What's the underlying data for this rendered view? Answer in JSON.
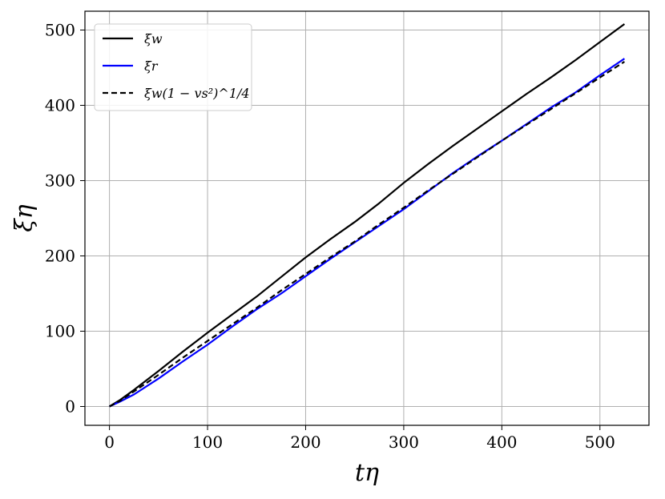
{
  "chart_data": {
    "type": "line",
    "xlabel": "tη",
    "ylabel": "ξη",
    "xlim": [
      -25,
      550
    ],
    "ylim": [
      -25,
      525
    ],
    "xticks": [
      0,
      100,
      200,
      300,
      400,
      500
    ],
    "yticks": [
      0,
      100,
      200,
      300,
      400,
      500
    ],
    "grid": true,
    "legend_position": "top-left",
    "series": [
      {
        "name": "ξw",
        "color": "#000000",
        "style": "solid",
        "x": [
          0,
          10,
          25,
          50,
          75,
          100,
          125,
          150,
          175,
          200,
          225,
          250,
          275,
          300,
          325,
          350,
          375,
          400,
          425,
          450,
          475,
          500,
          525
        ],
        "y": [
          0,
          8,
          22,
          47,
          73,
          98,
          122,
          146,
          172,
          198,
          222,
          245,
          270,
          297,
          322,
          346,
          369,
          392,
          415,
          437,
          460,
          484,
          508
        ]
      },
      {
        "name": "ξr",
        "color": "#0000ff",
        "style": "solid",
        "x": [
          0,
          10,
          25,
          50,
          75,
          100,
          125,
          150,
          175,
          200,
          225,
          250,
          275,
          300,
          325,
          350,
          375,
          400,
          425,
          450,
          475,
          500,
          525
        ],
        "y": [
          0,
          6,
          16,
          37,
          60,
          82,
          106,
          129,
          150,
          173,
          196,
          218,
          240,
          262,
          286,
          310,
          332,
          353,
          375,
          397,
          417,
          440,
          462
        ]
      },
      {
        "name": "ξw(1 − vs²)^1/4",
        "color": "#000000",
        "style": "dashed",
        "x": [
          0,
          10,
          25,
          50,
          75,
          100,
          125,
          150,
          175,
          200,
          225,
          250,
          275,
          300,
          325,
          350,
          375,
          400,
          425,
          450,
          475,
          500,
          525
        ],
        "y": [
          0,
          7,
          20,
          42,
          65,
          87,
          109,
          131,
          154,
          176,
          198,
          219,
          242,
          264,
          287,
          309,
          331,
          353,
          374,
          395,
          416,
          437,
          458
        ]
      }
    ]
  }
}
